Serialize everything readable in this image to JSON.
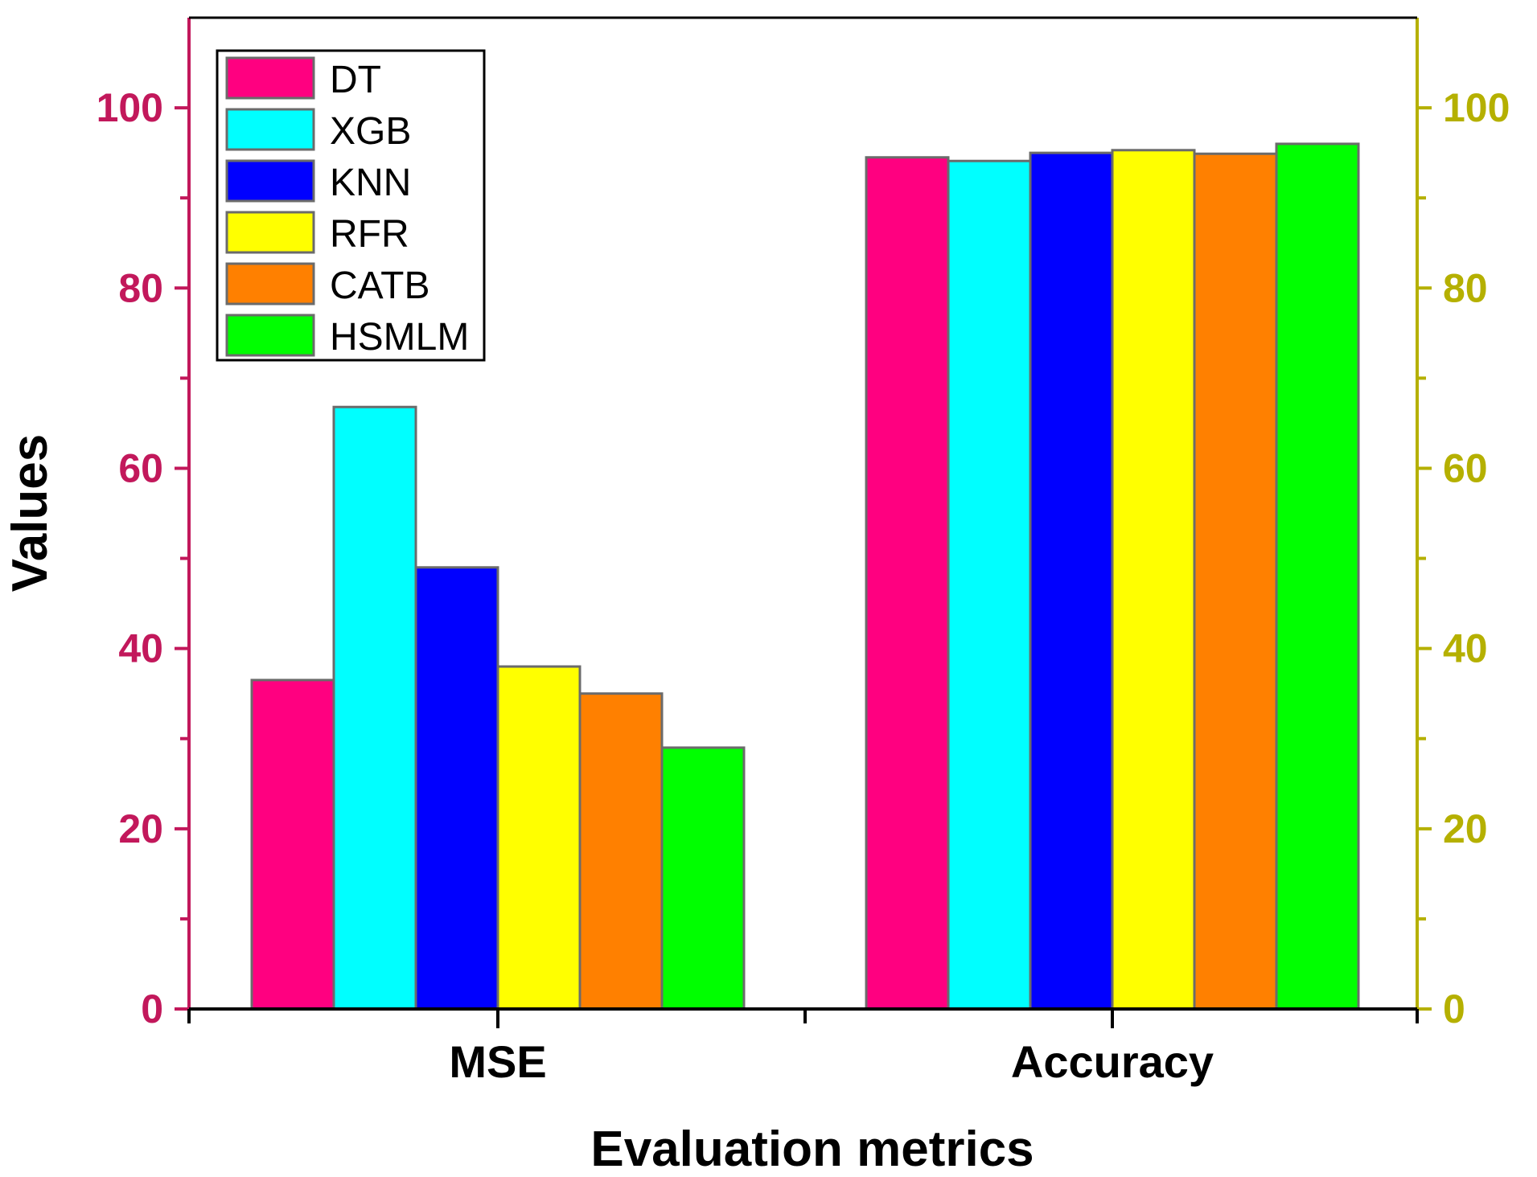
{
  "chart_data": {
    "type": "bar",
    "title": "",
    "xlabel": "Evaluation metrics",
    "ylabel": "Values",
    "categories": [
      "MSE",
      "Accuracy"
    ],
    "ylim": [
      0,
      110
    ],
    "left_ticks": [
      "0",
      "20",
      "40",
      "60",
      "80",
      "100"
    ],
    "right_ticks": [
      "0",
      "20",
      "40",
      "60",
      "80",
      "100"
    ],
    "left_axis_color": "#C2185B",
    "right_axis_color": "#B5B000",
    "legend_position": "top-left",
    "series": [
      {
        "name": "DT",
        "color": "#FF0080",
        "values": [
          36.5,
          94.5
        ]
      },
      {
        "name": "XGB",
        "color": "#00FFFF",
        "values": [
          66.8,
          94.1
        ]
      },
      {
        "name": "KNN",
        "color": "#0000FF",
        "values": [
          49.0,
          95.0
        ]
      },
      {
        "name": "RFR",
        "color": "#FFFF00",
        "values": [
          38.0,
          95.3
        ]
      },
      {
        "name": "CATB",
        "color": "#FF8000",
        "values": [
          35.0,
          94.9
        ]
      },
      {
        "name": "HSMLM",
        "color": "#00FF00",
        "values": [
          29.0,
          96.0
        ]
      }
    ]
  }
}
